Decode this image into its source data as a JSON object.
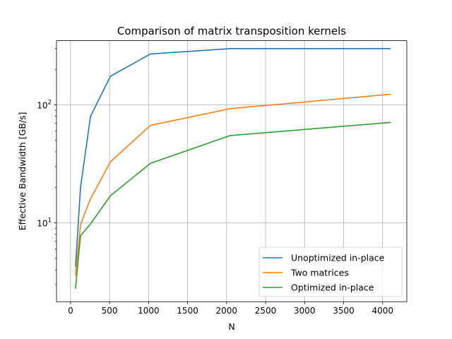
{
  "chart_data": {
    "type": "line",
    "title": "Comparison of matrix transposition kernels",
    "xlabel": "N",
    "ylabel": "Effective Bandwidth [GB/s]",
    "x": [
      64,
      128,
      256,
      512,
      1024,
      2048,
      4096
    ],
    "xlim": [
      -180,
      4310
    ],
    "ylim": [
      2.15,
      350
    ],
    "yscale": "log",
    "grid": true,
    "legend_position": "lower-right",
    "x_ticks": [
      0,
      500,
      1000,
      1500,
      2000,
      2500,
      3000,
      3500,
      4000
    ],
    "x_tick_labels": [
      "0",
      "500",
      "1000",
      "1500",
      "2000",
      "2500",
      "3000",
      "3500",
      "4000"
    ],
    "y_major_ticks": [
      10,
      100
    ],
    "y_tick_labels": [
      {
        "base": "10",
        "exp": "1"
      },
      {
        "base": "10",
        "exp": "2"
      }
    ],
    "y_minor_ticks": [
      3,
      4,
      5,
      6,
      7,
      8,
      9,
      20,
      30,
      40,
      50,
      60,
      70,
      80,
      90,
      200,
      300
    ],
    "series": [
      {
        "name": "Unoptimized in-place",
        "color": "#1f77b4",
        "values": [
          4.3,
          20,
          80,
          175,
          270,
          300,
          300
        ]
      },
      {
        "name": "Two matrices",
        "color": "#ff7f0e",
        "values": [
          3.6,
          9.7,
          16,
          33,
          67,
          93,
          123
        ]
      },
      {
        "name": "Optimized in-place",
        "color": "#2ca02c",
        "values": [
          2.8,
          7.8,
          9.8,
          17,
          32,
          55,
          71
        ]
      }
    ]
  }
}
